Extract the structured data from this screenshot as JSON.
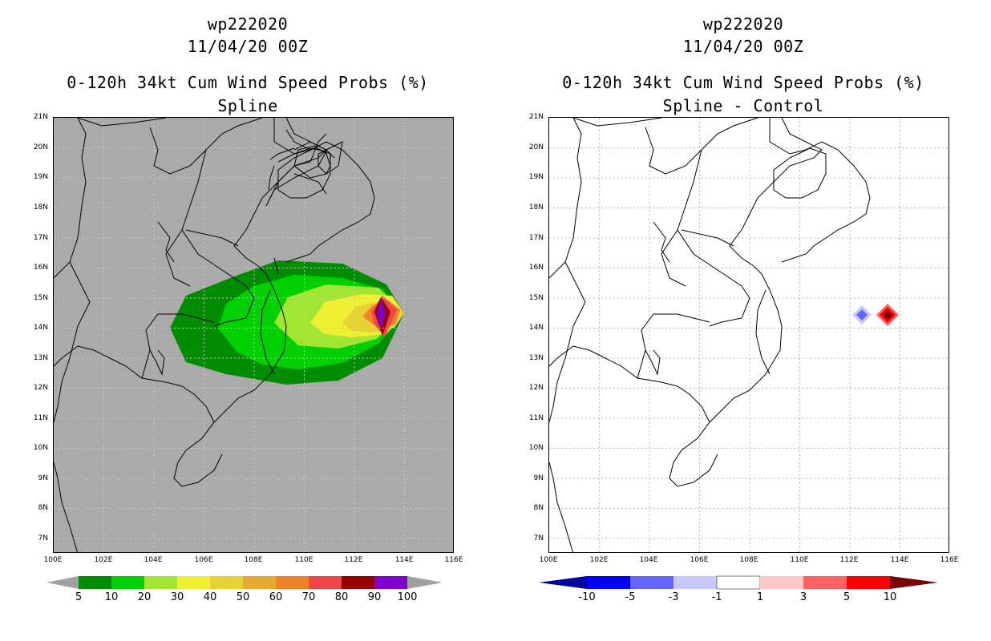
{
  "left": {
    "title_line1": "wp222020",
    "title_line2": "11/04/20 00Z",
    "title_line3": "0-120h 34kt Cum Wind Speed Probs (%)",
    "title_line4": "Spline",
    "colorbar": {
      "labels": [
        "5",
        "10",
        "20",
        "30",
        "40",
        "50",
        "60",
        "70",
        "80",
        "90",
        "100"
      ],
      "colors": [
        "#008c00",
        "#00d000",
        "#a0e632",
        "#f0f032",
        "#e6d232",
        "#e6aa32",
        "#f08228",
        "#f04646",
        "#960000",
        "#8000d0"
      ],
      "end_color": "#a0a0a0"
    }
  },
  "right": {
    "title_line1": "wp222020",
    "title_line2": "11/04/20 00Z",
    "title_line3": "0-120h 34kt Cum Wind Speed Probs (%)",
    "title_line4": "Spline - Control",
    "colorbar": {
      "labels": [
        "-10",
        "-5",
        "-3",
        "-1",
        "1",
        "3",
        "5",
        "10"
      ],
      "colors": [
        "#0000a0",
        "#0000ff",
        "#6464ff",
        "#c8c8ff",
        "#ffffff",
        "#ffc8c8",
        "#ff6464",
        "#ff0000"
      ],
      "end_left": "#0000a0",
      "end_right": "#780000"
    }
  },
  "axes": {
    "lat_labels": [
      "21N",
      "20N",
      "19N",
      "18N",
      "17N",
      "16N",
      "15N",
      "14N",
      "13N",
      "12N",
      "11N",
      "10N",
      "9N",
      "8N",
      "7N"
    ],
    "lon_labels": [
      "100E",
      "102E",
      "104E",
      "106E",
      "108E",
      "110E",
      "112E",
      "114E",
      "116E"
    ],
    "lat_range": [
      6.5,
      21
    ],
    "lon_range": [
      100,
      116
    ]
  },
  "map_colors": {
    "land_sea_left": "#aaaaaa",
    "background_right": "#ffffff",
    "coast": "#000000",
    "grid": "#bbbbbb"
  }
}
